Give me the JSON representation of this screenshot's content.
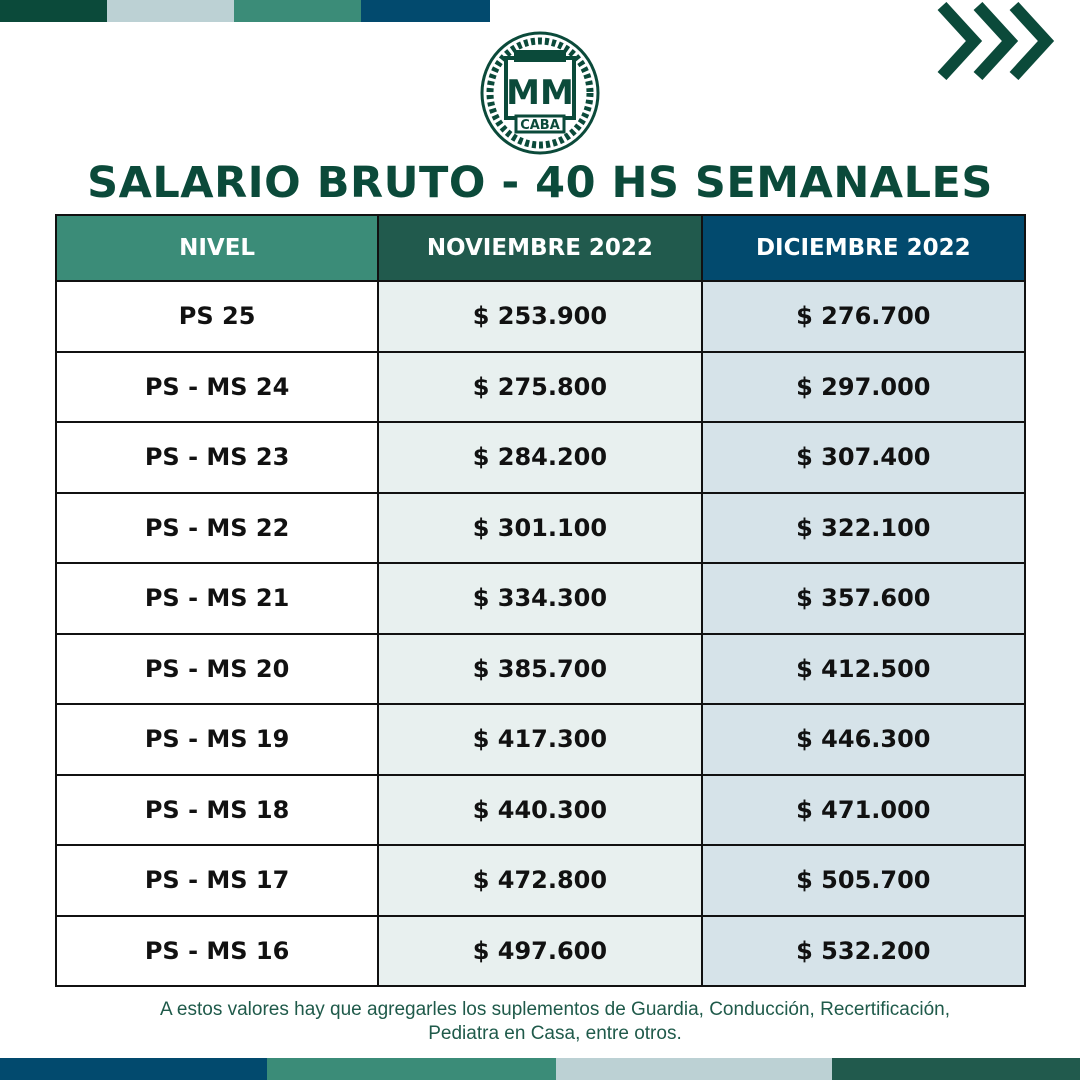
{
  "colors": {
    "dark_green": "#0b4a3a",
    "light_gray_blue": "#bcd1d4",
    "teal": "#3b8c78",
    "navy": "#024a6e",
    "forest": "#215a4d"
  },
  "logo": {
    "text_top": "MM",
    "text_bottom": "CABA"
  },
  "title": "SALARIO BRUTO - 40 HS SEMANALES",
  "table": {
    "headers": [
      "NIVEL",
      "NOVIEMBRE 2022",
      "DICIEMBRE 2022"
    ],
    "rows": [
      [
        "PS 25",
        "$ 253.900",
        "$ 276.700"
      ],
      [
        "PS - MS 24",
        "$ 275.800",
        "$ 297.000"
      ],
      [
        "PS - MS 23",
        "$ 284.200",
        "$ 307.400"
      ],
      [
        "PS - MS 22",
        "$ 301.100",
        "$ 322.100"
      ],
      [
        "PS - MS 21",
        "$ 334.300",
        "$ 357.600"
      ],
      [
        "PS - MS 20",
        "$ 385.700",
        "$ 412.500"
      ],
      [
        "PS - MS 19",
        "$ 417.300",
        "$ 446.300"
      ],
      [
        "PS - MS 18",
        "$ 440.300",
        "$ 471.000"
      ],
      [
        "PS - MS 17",
        "$ 472.800",
        "$ 505.700"
      ],
      [
        "PS - MS 16",
        "$ 497.600",
        "$ 532.200"
      ]
    ]
  },
  "note": {
    "line1": "A estos valores hay que agregarles los suplementos de Guardia, Conducción, Recertificación,",
    "line2": "Pediatra en Casa, entre otros."
  }
}
